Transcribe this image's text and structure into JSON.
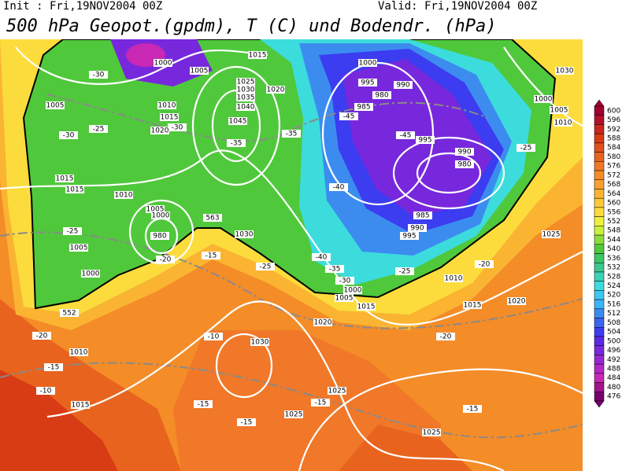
{
  "header": {
    "init": "Init : Fri,19NOV2004 00Z",
    "valid": "Valid: Fri,19NOV2004 00Z",
    "title": "500 hPa Geopot.(gpdm), T (C) und Bodendr. (hPa)"
  },
  "colorbar": {
    "ticks": [
      600,
      596,
      592,
      588,
      584,
      580,
      576,
      572,
      568,
      564,
      560,
      556,
      552,
      548,
      544,
      540,
      536,
      532,
      528,
      524,
      520,
      516,
      512,
      508,
      504,
      500,
      496,
      492,
      488,
      484,
      480,
      476
    ],
    "colors": [
      "#a00030",
      "#b4102c",
      "#c8281e",
      "#d83c14",
      "#e0501a",
      "#e8641e",
      "#f07828",
      "#f48c28",
      "#f8a030",
      "#fab432",
      "#fcc83a",
      "#fcdc3c",
      "#f0f03c",
      "#c8f03c",
      "#8cdc3c",
      "#50c83c",
      "#3cc864",
      "#3cc88c",
      "#3cd2b4",
      "#3cdcdc",
      "#3cc8f0",
      "#3cb4f8",
      "#3c8cf0",
      "#3c64f0",
      "#3c3cf0",
      "#5a28e6",
      "#7828dc",
      "#9628d2",
      "#b428c8",
      "#c828b4",
      "#a0148c",
      "#78006e"
    ]
  },
  "contour_labels": [
    1000,
    1005,
    -30,
    1015,
    1025,
    1030,
    1035,
    1040,
    1020,
    1005,
    1010,
    1015,
    -30,
    1020,
    -25,
    -30,
    1045,
    -35,
    -35,
    1000,
    995,
    990,
    985,
    980,
    -45,
    -45,
    995,
    990,
    980,
    -40,
    985,
    990,
    995,
    1000,
    1005,
    1010,
    -25,
    1015,
    1015,
    1010,
    1005,
    1000,
    980,
    -25,
    1005,
    1000,
    -20,
    -15,
    1030,
    -25,
    -40,
    -35,
    -30,
    1000,
    1005,
    1015,
    -25,
    1010,
    -20,
    1025,
    1015,
    1020,
    1020,
    -10,
    1030,
    -20,
    1010,
    -15,
    -10,
    1015,
    -15,
    1025,
    -15,
    1025,
    -15,
    -20,
    -15,
    1025,
    1030,
    563,
    552
  ]
}
